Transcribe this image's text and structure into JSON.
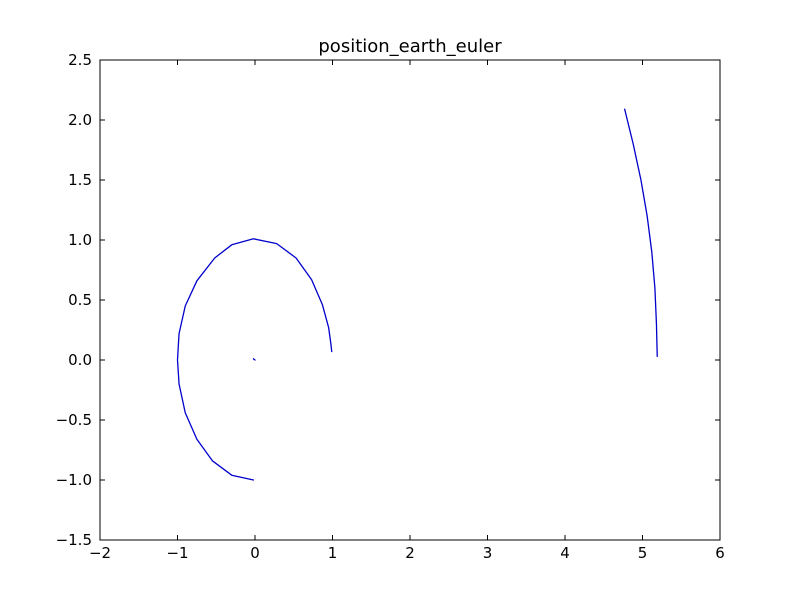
{
  "chart_data": {
    "type": "line",
    "title": "position_earth_euler",
    "xlabel": "",
    "ylabel": "",
    "xlim": [
      -2,
      6
    ],
    "ylim": [
      -1.5,
      2.5
    ],
    "grid": false,
    "x_ticks": [
      -2,
      -1,
      0,
      1,
      2,
      3,
      4,
      5,
      6
    ],
    "y_ticks": [
      -1.5,
      -1.0,
      -0.5,
      0.0,
      0.5,
      1.0,
      1.5,
      2.0,
      2.5
    ],
    "x_tick_labels": [
      "−2",
      "−1",
      "0",
      "1",
      "2",
      "3",
      "4",
      "5",
      "6"
    ],
    "y_tick_labels": [
      "−1.5",
      "−1.0",
      "−0.5",
      "0.0",
      "0.5",
      "1.0",
      "1.5",
      "2.0",
      "2.5"
    ],
    "line_color": "#0000cc",
    "series": [
      {
        "x": [
          -0.02,
          -0.3,
          -0.55,
          -0.75,
          -0.9,
          -0.98,
          -1.0,
          -0.98,
          -0.9,
          -0.75,
          -0.52,
          -0.3,
          -0.02,
          0.28,
          0.53,
          0.73,
          0.87,
          0.95,
          0.98,
          0.99
        ],
        "y": [
          -1.0,
          -0.96,
          -0.84,
          -0.66,
          -0.44,
          -0.2,
          0.0,
          0.22,
          0.45,
          0.66,
          0.85,
          0.96,
          1.01,
          0.97,
          0.85,
          0.67,
          0.46,
          0.27,
          0.13,
          0.07
        ]
      },
      {
        "x": [
          -0.02,
          0.0
        ],
        "y": [
          0.01,
          0.0
        ]
      },
      {
        "x": [
          4.77,
          4.88,
          4.98,
          5.06,
          5.12,
          5.16,
          5.18,
          5.19
        ],
        "y": [
          2.09,
          1.8,
          1.5,
          1.2,
          0.9,
          0.6,
          0.3,
          0.03
        ]
      }
    ]
  }
}
